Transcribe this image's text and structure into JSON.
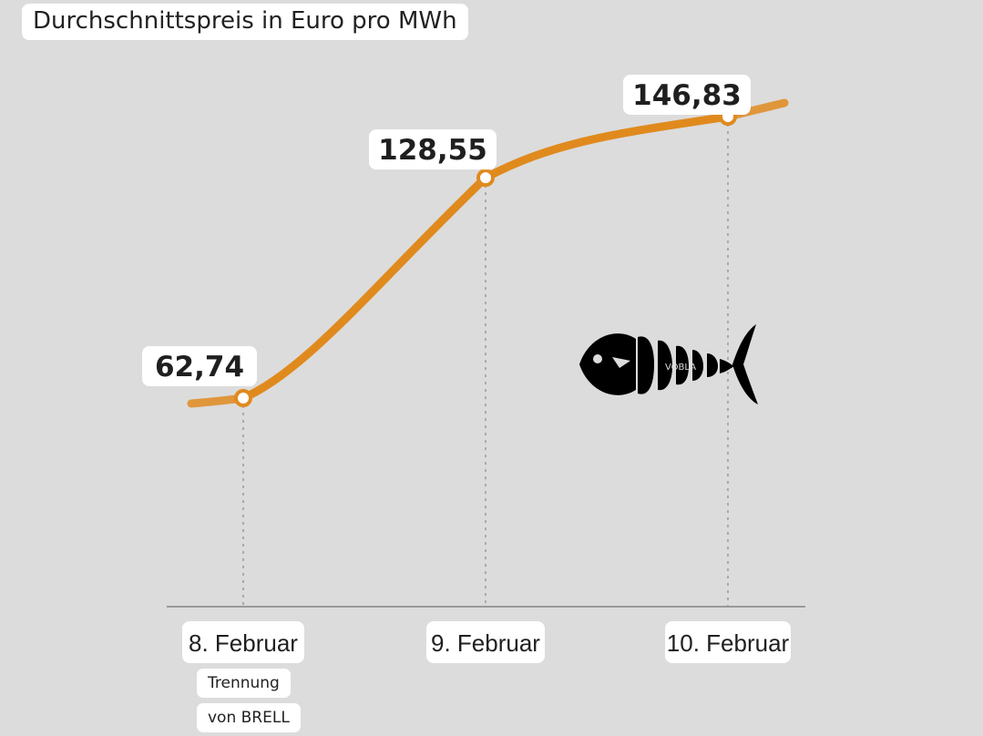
{
  "chart_data": {
    "type": "line",
    "title": "Durchschnittspreis in Euro pro MWh",
    "categories": [
      "8. Februar",
      "9. Februar",
      "10. Februar"
    ],
    "values": [
      62.74,
      128.55,
      146.83
    ],
    "value_labels": [
      "62,74",
      "128,55",
      "146,83"
    ],
    "line_color": "#e08a1e",
    "annotations": [
      "Trennung",
      "von BRELL"
    ],
    "grid": "vertical dotted guide lines at each category"
  },
  "logo": {
    "icon": "fish-logo-icon",
    "text": "VOBLA"
  }
}
